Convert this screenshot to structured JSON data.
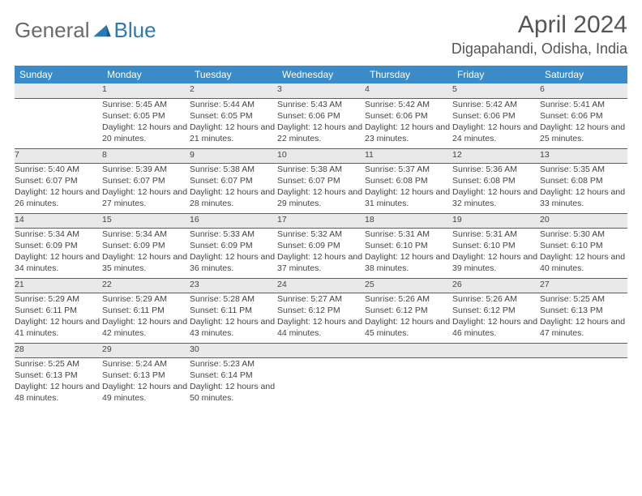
{
  "logo": {
    "word1": "General",
    "word2": "Blue"
  },
  "title": "April 2024",
  "location": "Digapahandi, Odisha, India",
  "colors": {
    "header_bg": "#3b8bc9",
    "header_text": "#ffffff",
    "daynum_bg": "#e9e9e9",
    "row_border": "#2a6aa0",
    "text": "#444444",
    "title_text": "#555555",
    "logo_gray": "#6b6b6b",
    "logo_blue": "#2a7ab8"
  },
  "weekdays": [
    "Sunday",
    "Monday",
    "Tuesday",
    "Wednesday",
    "Thursday",
    "Friday",
    "Saturday"
  ],
  "weeks": [
    {
      "days": [
        null,
        {
          "n": "1",
          "sunrise": "5:45 AM",
          "sunset": "6:05 PM",
          "daylight": "12 hours and 20 minutes."
        },
        {
          "n": "2",
          "sunrise": "5:44 AM",
          "sunset": "6:05 PM",
          "daylight": "12 hours and 21 minutes."
        },
        {
          "n": "3",
          "sunrise": "5:43 AM",
          "sunset": "6:06 PM",
          "daylight": "12 hours and 22 minutes."
        },
        {
          "n": "4",
          "sunrise": "5:42 AM",
          "sunset": "6:06 PM",
          "daylight": "12 hours and 23 minutes."
        },
        {
          "n": "5",
          "sunrise": "5:42 AM",
          "sunset": "6:06 PM",
          "daylight": "12 hours and 24 minutes."
        },
        {
          "n": "6",
          "sunrise": "5:41 AM",
          "sunset": "6:06 PM",
          "daylight": "12 hours and 25 minutes."
        }
      ]
    },
    {
      "days": [
        {
          "n": "7",
          "sunrise": "5:40 AM",
          "sunset": "6:07 PM",
          "daylight": "12 hours and 26 minutes."
        },
        {
          "n": "8",
          "sunrise": "5:39 AM",
          "sunset": "6:07 PM",
          "daylight": "12 hours and 27 minutes."
        },
        {
          "n": "9",
          "sunrise": "5:38 AM",
          "sunset": "6:07 PM",
          "daylight": "12 hours and 28 minutes."
        },
        {
          "n": "10",
          "sunrise": "5:38 AM",
          "sunset": "6:07 PM",
          "daylight": "12 hours and 29 minutes."
        },
        {
          "n": "11",
          "sunrise": "5:37 AM",
          "sunset": "6:08 PM",
          "daylight": "12 hours and 31 minutes."
        },
        {
          "n": "12",
          "sunrise": "5:36 AM",
          "sunset": "6:08 PM",
          "daylight": "12 hours and 32 minutes."
        },
        {
          "n": "13",
          "sunrise": "5:35 AM",
          "sunset": "6:08 PM",
          "daylight": "12 hours and 33 minutes."
        }
      ]
    },
    {
      "days": [
        {
          "n": "14",
          "sunrise": "5:34 AM",
          "sunset": "6:09 PM",
          "daylight": "12 hours and 34 minutes."
        },
        {
          "n": "15",
          "sunrise": "5:34 AM",
          "sunset": "6:09 PM",
          "daylight": "12 hours and 35 minutes."
        },
        {
          "n": "16",
          "sunrise": "5:33 AM",
          "sunset": "6:09 PM",
          "daylight": "12 hours and 36 minutes."
        },
        {
          "n": "17",
          "sunrise": "5:32 AM",
          "sunset": "6:09 PM",
          "daylight": "12 hours and 37 minutes."
        },
        {
          "n": "18",
          "sunrise": "5:31 AM",
          "sunset": "6:10 PM",
          "daylight": "12 hours and 38 minutes."
        },
        {
          "n": "19",
          "sunrise": "5:31 AM",
          "sunset": "6:10 PM",
          "daylight": "12 hours and 39 minutes."
        },
        {
          "n": "20",
          "sunrise": "5:30 AM",
          "sunset": "6:10 PM",
          "daylight": "12 hours and 40 minutes."
        }
      ]
    },
    {
      "days": [
        {
          "n": "21",
          "sunrise": "5:29 AM",
          "sunset": "6:11 PM",
          "daylight": "12 hours and 41 minutes."
        },
        {
          "n": "22",
          "sunrise": "5:29 AM",
          "sunset": "6:11 PM",
          "daylight": "12 hours and 42 minutes."
        },
        {
          "n": "23",
          "sunrise": "5:28 AM",
          "sunset": "6:11 PM",
          "daylight": "12 hours and 43 minutes."
        },
        {
          "n": "24",
          "sunrise": "5:27 AM",
          "sunset": "6:12 PM",
          "daylight": "12 hours and 44 minutes."
        },
        {
          "n": "25",
          "sunrise": "5:26 AM",
          "sunset": "6:12 PM",
          "daylight": "12 hours and 45 minutes."
        },
        {
          "n": "26",
          "sunrise": "5:26 AM",
          "sunset": "6:12 PM",
          "daylight": "12 hours and 46 minutes."
        },
        {
          "n": "27",
          "sunrise": "5:25 AM",
          "sunset": "6:13 PM",
          "daylight": "12 hours and 47 minutes."
        }
      ]
    },
    {
      "days": [
        {
          "n": "28",
          "sunrise": "5:25 AM",
          "sunset": "6:13 PM",
          "daylight": "12 hours and 48 minutes."
        },
        {
          "n": "29",
          "sunrise": "5:24 AM",
          "sunset": "6:13 PM",
          "daylight": "12 hours and 49 minutes."
        },
        {
          "n": "30",
          "sunrise": "5:23 AM",
          "sunset": "6:14 PM",
          "daylight": "12 hours and 50 minutes."
        },
        null,
        null,
        null,
        null
      ]
    }
  ],
  "labels": {
    "sunrise": "Sunrise:",
    "sunset": "Sunset:",
    "daylight": "Daylight:"
  }
}
